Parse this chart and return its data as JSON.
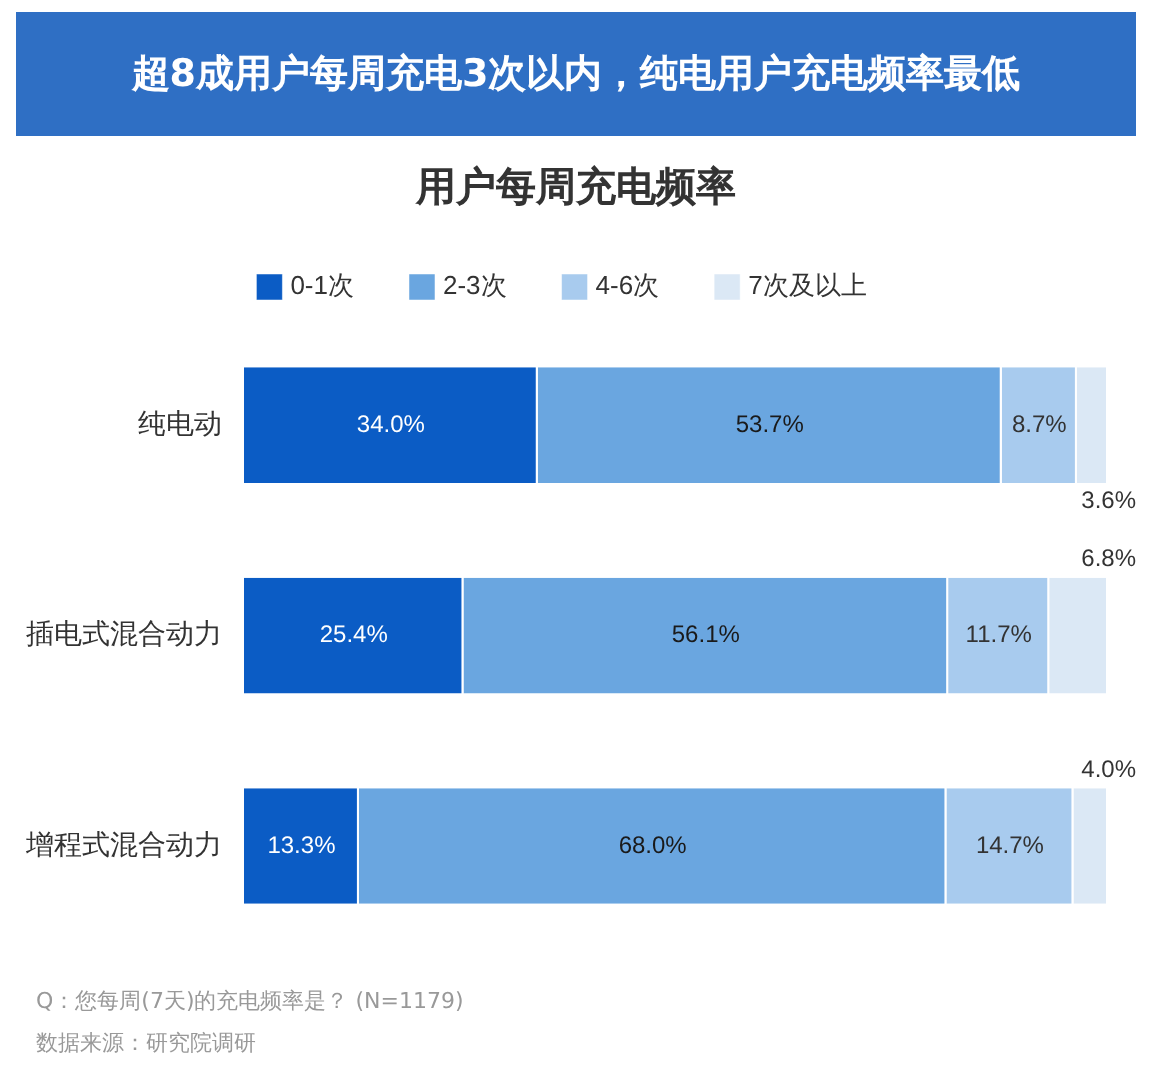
{
  "chart_data": {
    "type": "bar",
    "orientation": "horizontal",
    "stacked": true,
    "title": "超8成用户每周充电3次以内，纯电用户充电频率最低",
    "subtitle": "用户每周充电频率",
    "categories": [
      "纯电动",
      "插电式混合动力",
      "增程式混合动力"
    ],
    "series": [
      {
        "name": "0-1次",
        "color": "#0b5cc5",
        "values": [
          34.0,
          25.4,
          13.3
        ],
        "value_labels": [
          "34.0%",
          "25.4%",
          "13.3%"
        ]
      },
      {
        "name": "2-3次",
        "color": "#6aa6e0",
        "values": [
          53.7,
          56.1,
          68.0
        ],
        "value_labels": [
          "53.7%",
          "56.1%",
          "68.0%"
        ]
      },
      {
        "name": "4-6次",
        "color": "#a8cbee",
        "values": [
          8.7,
          11.7,
          14.7
        ],
        "value_labels": [
          "8.7%",
          "11.7%",
          "14.7%"
        ]
      },
      {
        "name": "7次及以上",
        "color": "#dbe8f5",
        "values": [
          3.6,
          6.8,
          4.0
        ],
        "value_labels": [
          "3.6%",
          "6.8%",
          "4.0%"
        ]
      }
    ],
    "xlim": [
      0,
      100
    ],
    "tick_labels": "y",
    "legend": "top",
    "annotations": [
      "Q：您每周(7天)的充电频率是？ (N=1179)",
      "数据来源：研究院调研"
    ]
  }
}
